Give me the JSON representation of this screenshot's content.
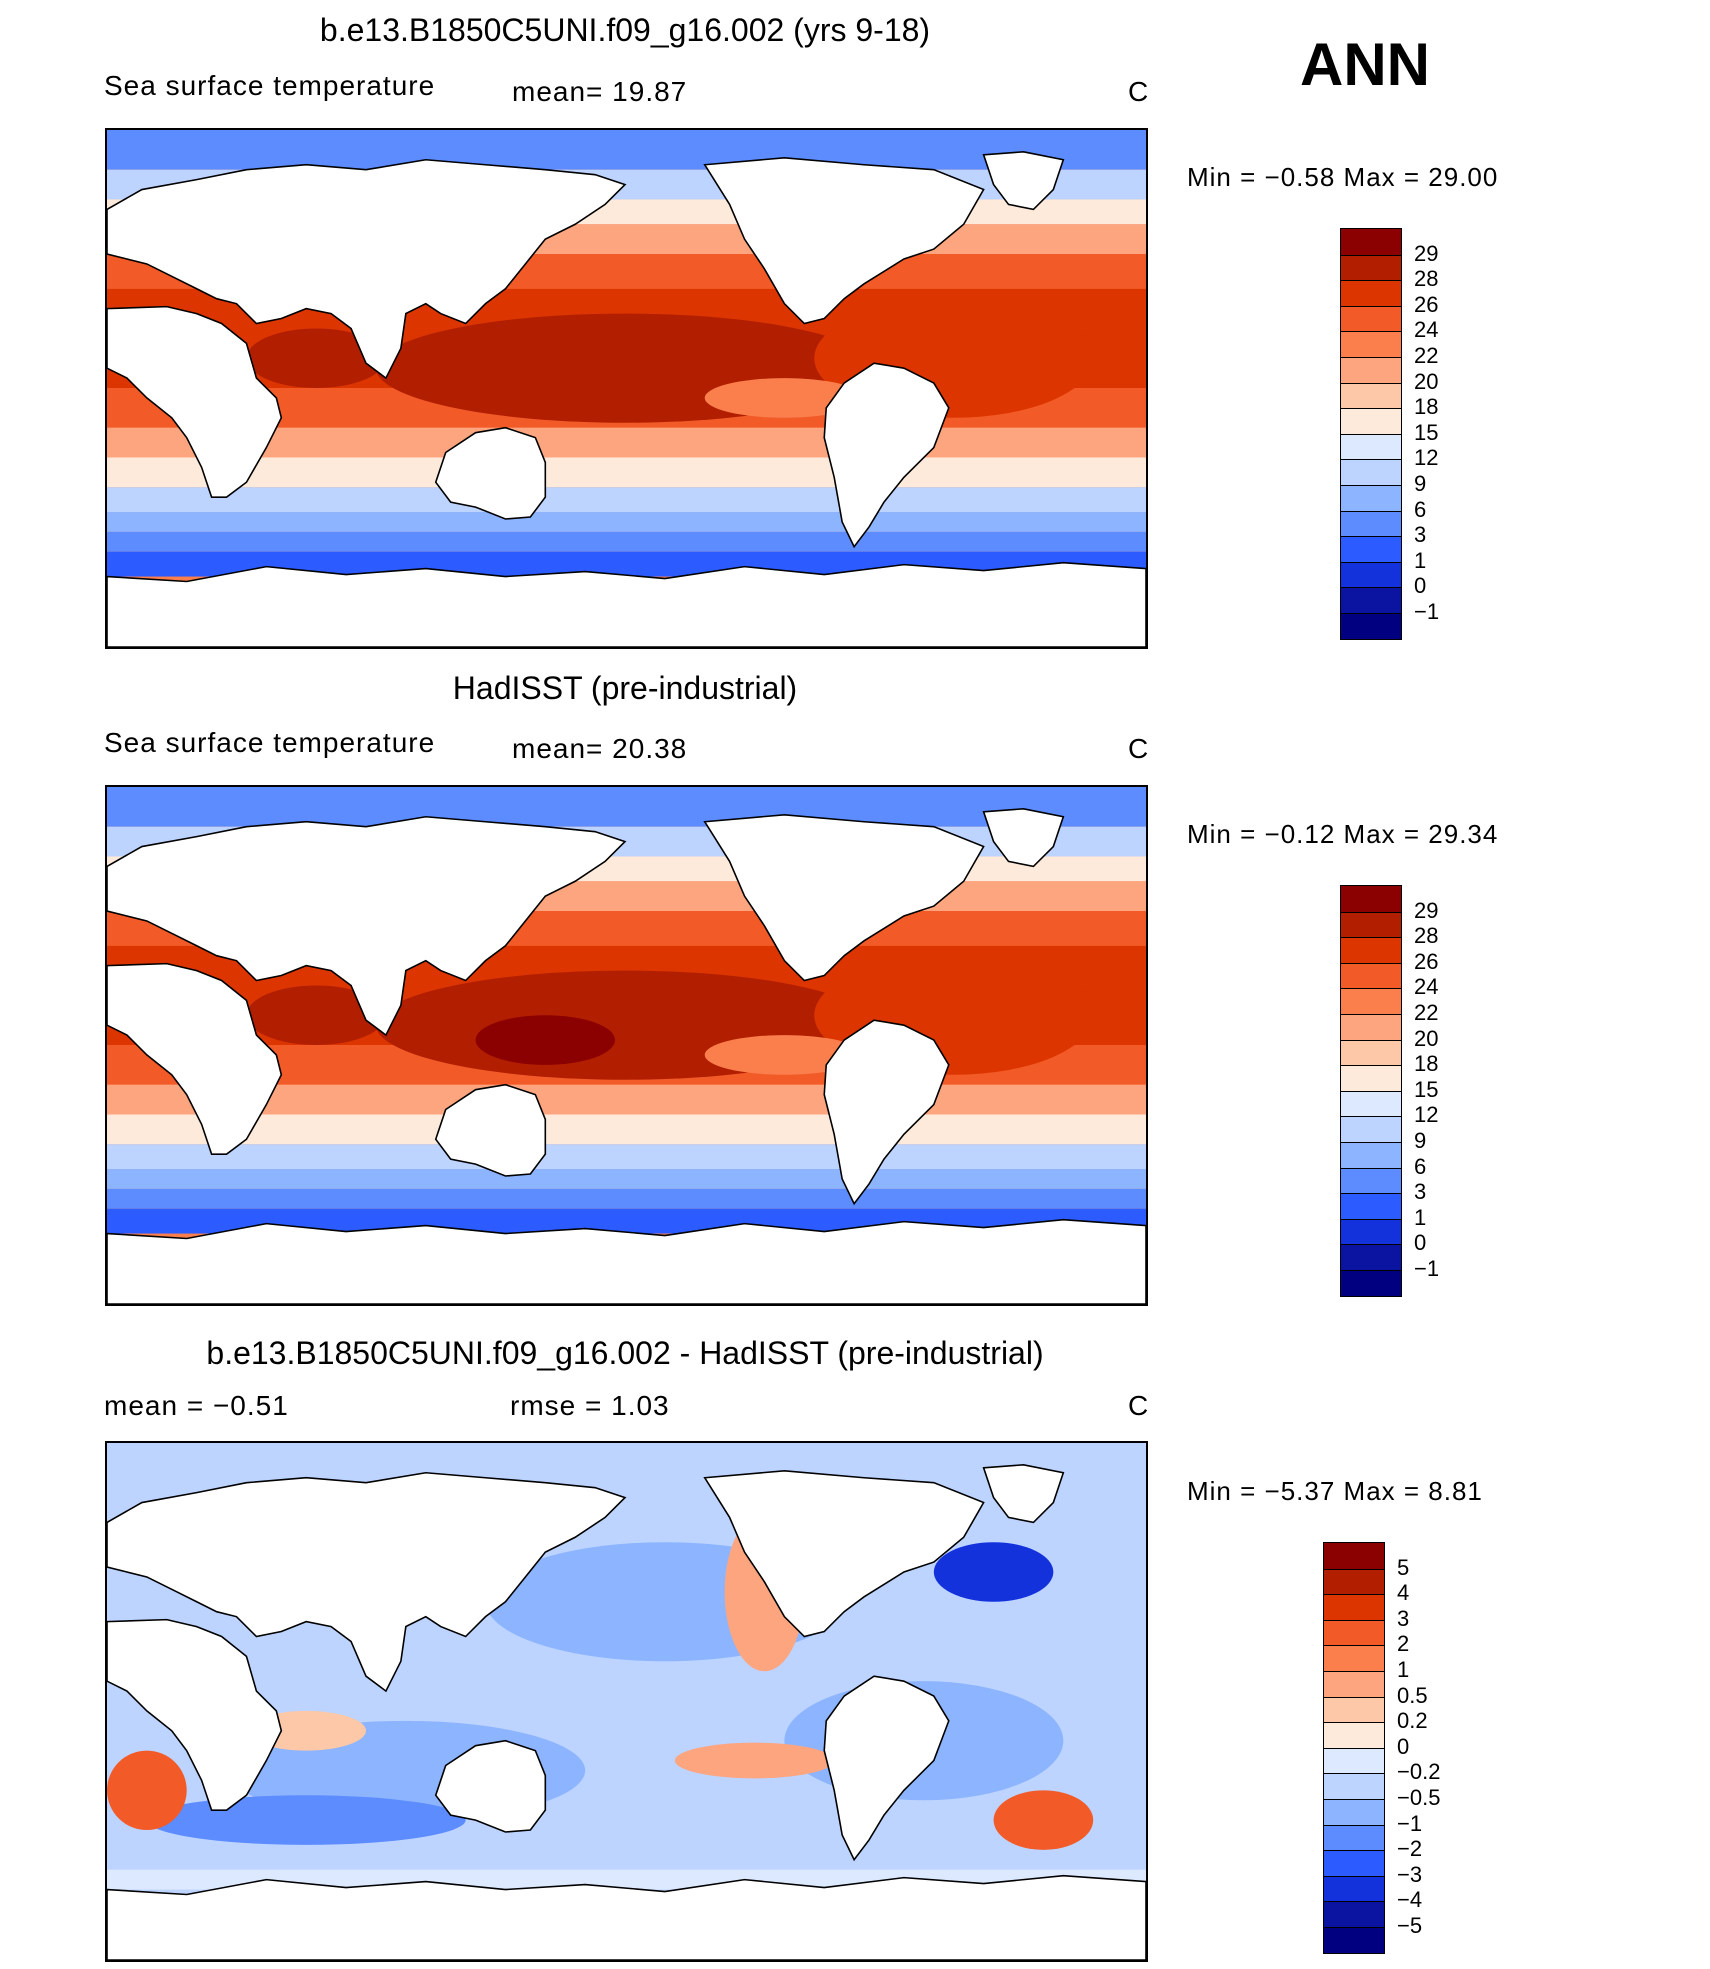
{
  "season": "ANN",
  "panels": [
    {
      "title": "b.e13.B1850C5UNI.f09_g16.002 (yrs 9-18)",
      "left_label": "Sea surface temperature",
      "stat1": "mean=   19.87",
      "stat2": "",
      "units": "C",
      "minmax": "Min =   −0.58  Max =    29.00",
      "map_type": "sst",
      "colorbar": {
        "labels": [
          "29",
          "28",
          "26",
          "24",
          "22",
          "20",
          "18",
          "15",
          "12",
          "9",
          "6",
          "3",
          "1",
          "0",
          "−1"
        ],
        "colors": [
          "#8b0000",
          "#b21e00",
          "#dc3500",
          "#f25a28",
          "#fb7f4c",
          "#fca57f",
          "#fdc8a7",
          "#feeadb",
          "#dce9ff",
          "#bcd4ff",
          "#8cb4ff",
          "#5c8cff",
          "#2c5cff",
          "#1432dc",
          "#0a14a0",
          "#000080"
        ]
      }
    },
    {
      "title": "HadISST (pre-industrial)",
      "left_label": "Sea surface temperature",
      "stat1": "mean=   20.38",
      "stat2": "",
      "units": "C",
      "minmax": "Min =   −0.12  Max =    29.34",
      "map_type": "sst",
      "colorbar": {
        "labels": [
          "29",
          "28",
          "26",
          "24",
          "22",
          "20",
          "18",
          "15",
          "12",
          "9",
          "6",
          "3",
          "1",
          "0",
          "−1"
        ],
        "colors": [
          "#8b0000",
          "#b21e00",
          "#dc3500",
          "#f25a28",
          "#fb7f4c",
          "#fca57f",
          "#fdc8a7",
          "#feeadb",
          "#dce9ff",
          "#bcd4ff",
          "#8cb4ff",
          "#5c8cff",
          "#2c5cff",
          "#1432dc",
          "#0a14a0",
          "#000080"
        ]
      }
    },
    {
      "title": "b.e13.B1850C5UNI.f09_g16.002 - HadISST (pre-industrial)",
      "left_label": "mean =   −0.51",
      "stat1": "",
      "stat2": "rmse =    1.03",
      "units": "C",
      "minmax": "Min =   −5.37  Max =     8.81",
      "map_type": "diff",
      "colorbar": {
        "labels": [
          "5",
          "4",
          "3",
          "2",
          "1",
          "0.5",
          "0.2",
          "0",
          "−0.2",
          "−0.5",
          "−1",
          "−2",
          "−3",
          "−4",
          "−5"
        ],
        "colors": [
          "#8b0000",
          "#b21e00",
          "#dc3500",
          "#f25a28",
          "#fb7f4c",
          "#fca57f",
          "#fdc8a7",
          "#feeadb",
          "#dce9ff",
          "#bcd4ff",
          "#8cb4ff",
          "#5c8cff",
          "#2c5cff",
          "#1432dc",
          "#0a14a0",
          "#000080"
        ]
      }
    }
  ]
}
